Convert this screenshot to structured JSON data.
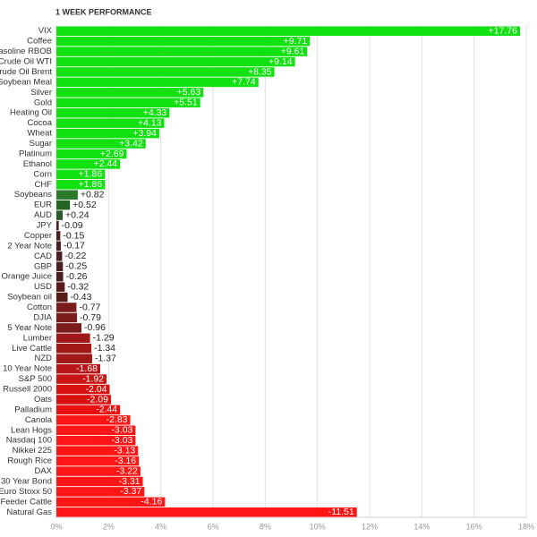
{
  "chart_data": {
    "type": "barh",
    "title": "1 WEEK PERFORMANCE",
    "categories": [
      "VIX",
      "Coffee",
      "Gasoline RBOB",
      "Crude Oil WTI",
      "Crude Oil Brent",
      "Soybean Meal",
      "Silver",
      "Gold",
      "Heating Oil",
      "Cocoa",
      "Wheat",
      "Sugar",
      "Platinum",
      "Ethanol",
      "Corn",
      "CHF",
      "Soybeans",
      "EUR",
      "AUD",
      "JPY",
      "Copper",
      "2 Year Note",
      "CAD",
      "GBP",
      "Orange Juice",
      "USD",
      "Soybean oil",
      "Cotton",
      "DJIA",
      "5 Year Note",
      "Lumber",
      "Live Cattle",
      "NZD",
      "10 Year Note",
      "S&P 500",
      "Russell 2000",
      "Oats",
      "Palladium",
      "Canola",
      "Lean Hogs",
      "Nasdaq 100",
      "Nikkei 225",
      "Rough Rice",
      "DAX",
      "30 Year Bond",
      "Euro Stoxx 50",
      "Feeder Cattle",
      "Natural Gas"
    ],
    "values": [
      17.76,
      9.71,
      9.61,
      9.14,
      8.35,
      7.74,
      5.63,
      5.51,
      4.33,
      4.13,
      3.94,
      3.42,
      2.69,
      2.44,
      1.86,
      1.86,
      0.82,
      0.52,
      0.24,
      -0.09,
      -0.15,
      -0.17,
      -0.22,
      -0.25,
      -0.26,
      -0.32,
      -0.43,
      -0.77,
      -0.79,
      -0.96,
      -1.29,
      -1.34,
      -1.37,
      -1.68,
      -1.92,
      -2.04,
      -2.09,
      -2.44,
      -2.83,
      -3.03,
      -3.03,
      -3.13,
      -3.16,
      -3.22,
      -3.31,
      -3.37,
      -4.16,
      -11.51
    ],
    "value_labels": [
      "+17.76",
      "+9.71",
      "+9.61",
      "+9.14",
      "+8.35",
      "+7.74",
      "+5.63",
      "+5.51",
      "+4.33",
      "+4.13",
      "+3.94",
      "+3.42",
      "+2.69",
      "+2.44",
      "+1.86",
      "+1.86",
      "+0.82",
      "+0.52",
      "+0.24",
      "-0.09",
      "-0.15",
      "-0.17",
      "-0.22",
      "-0.25",
      "-0.26",
      "-0.32",
      "-0.43",
      "-0.77",
      "-0.79",
      "-0.96",
      "-1.29",
      "-1.34",
      "-1.37",
      "-1.68",
      "-1.92",
      "-2.04",
      "-2.09",
      "-2.44",
      "-2.83",
      "-3.03",
      "-3.03",
      "-3.13",
      "-3.16",
      "-3.22",
      "-3.31",
      "-3.37",
      "-4.16",
      "-11.51"
    ],
    "colors": [
      "#11e011",
      "#11e011",
      "#11e011",
      "#11e011",
      "#11e011",
      "#11e011",
      "#11e011",
      "#11e011",
      "#11e011",
      "#11e011",
      "#11e011",
      "#11e011",
      "#11e011",
      "#11e011",
      "#11e011",
      "#11e011",
      "#2c7a2c",
      "#236423",
      "#2a5a2a",
      "#4a2020",
      "#4a2020",
      "#4a2020",
      "#4a2020",
      "#4a2020",
      "#4a2020",
      "#5a1a1a",
      "#5a1a1a",
      "#7a1c1c",
      "#7a1c1c",
      "#7a1c1c",
      "#a01818",
      "#a01818",
      "#a01818",
      "#b81616",
      "#c81414",
      "#d81010",
      "#d81010",
      "#e81010",
      "#ff1515",
      "#ff1515",
      "#ff1515",
      "#ff1515",
      "#ff1515",
      "#ff1515",
      "#ff1515",
      "#ff1515",
      "#ff1515",
      "#ff1515"
    ],
    "xlim": [
      0,
      18
    ],
    "xticks": [
      {
        "value": 0,
        "label": "0%"
      },
      {
        "value": 2,
        "label": "2%"
      },
      {
        "value": 4,
        "label": "4%"
      },
      {
        "value": 6,
        "label": "6%"
      },
      {
        "value": 8,
        "label": "8%"
      },
      {
        "value": 10,
        "label": "10%"
      },
      {
        "value": 12,
        "label": "12%"
      },
      {
        "value": 14,
        "label": "14%"
      },
      {
        "value": 16,
        "label": "16%"
      },
      {
        "value": 18,
        "label": "18%"
      }
    ],
    "grid": true
  }
}
